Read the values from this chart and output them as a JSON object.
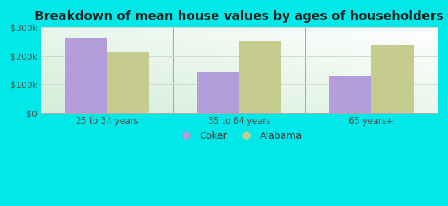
{
  "title": "Breakdown of mean house values by ages of householders",
  "categories": [
    "25 to 34 years",
    "35 to 64 years",
    "65 years+"
  ],
  "coker_values": [
    262000,
    145000,
    130000
  ],
  "alabama_values": [
    215000,
    255000,
    238000
  ],
  "coker_color": "#b39ddb",
  "alabama_color": "#c5cc8e",
  "background_outer": "#00e8e8",
  "ylim": [
    0,
    300000
  ],
  "yticks": [
    0,
    100000,
    200000,
    300000
  ],
  "ytick_labels": [
    "$0",
    "$100k",
    "$200k",
    "$300k"
  ],
  "bar_width": 0.32,
  "legend_labels": [
    "Coker",
    "Alabama"
  ],
  "title_fontsize": 13,
  "tick_fontsize": 9,
  "legend_fontsize": 10
}
